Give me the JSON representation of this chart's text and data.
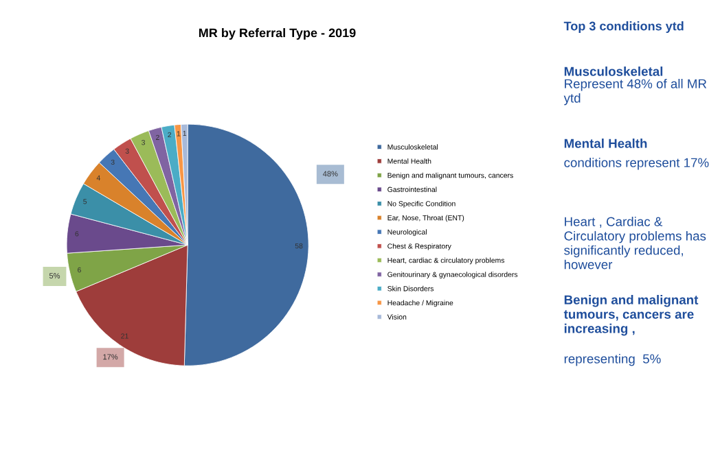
{
  "chart_data": [
    {
      "type": "pie",
      "title": "MR by Referral Type - 2019",
      "categories": [
        "Musculoskeletal",
        "Mental Health",
        "Benign and malignant tumours, cancers",
        "Gastrointestinal",
        "No Specific Condition",
        "Ear, Nose, Throat (ENT)",
        "Neurological",
        "Chest & Respiratory",
        "Heart, cardiac & circulatory problems",
        "Genitourinary & gynaecological disorders",
        "Skin Disorders",
        "Headache / Migraine",
        "Vision"
      ],
      "values": [
        58,
        21,
        6,
        6,
        5,
        4,
        3,
        3,
        3,
        2,
        2,
        1,
        1
      ],
      "colors": [
        "#3f6a9e",
        "#9e3d3b",
        "#7fa447",
        "#6a4a8c",
        "#3b8fa8",
        "#d9822b",
        "#4677b5",
        "#c0504d",
        "#9bbb59",
        "#8064a2",
        "#4bacc6",
        "#f79646",
        "#a7b9d9"
      ],
      "data_labels": true,
      "legend": "right",
      "annotations": [
        "48%",
        "17%",
        "5%"
      ]
    },
    {
      "type": "other",
      "title": "Top 3 conditions ytd",
      "annotations": [
        "Musculoskeletal",
        "Represent 48% of all MR ytd",
        "Mental Health",
        "conditions represent 17%",
        "Heart , Cardiac & Circulatory problems has significantly reduced, however",
        "Benign and malignant tumours, cancers are increasing ,",
        "representing  5%"
      ]
    }
  ]
}
